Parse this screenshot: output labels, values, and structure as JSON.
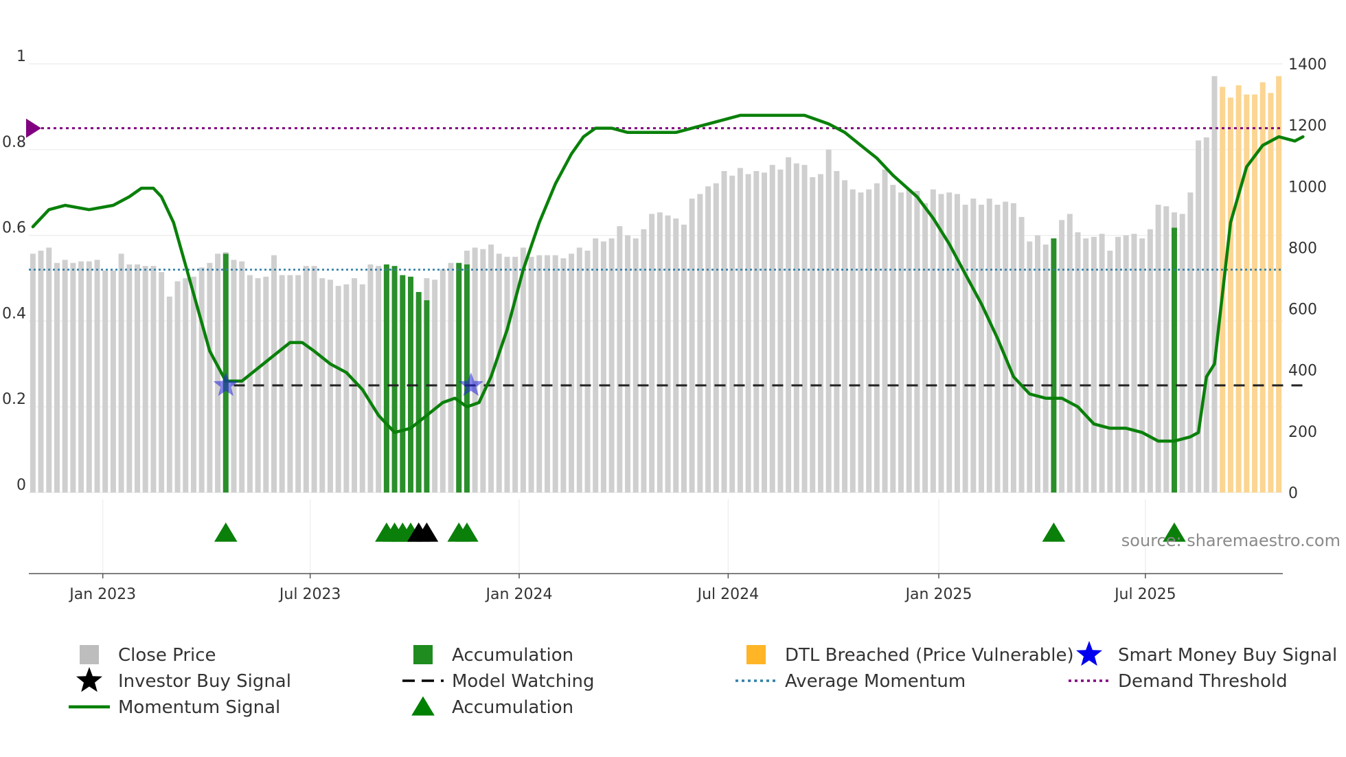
{
  "chart_data": {
    "type": "bar",
    "source_text": "source: sharemaestro.com",
    "x_ticks": [
      "Jan 2023",
      "Jul 2023",
      "Jan 2024",
      "Jul 2024",
      "Jan 2025",
      "Jul 2025"
    ],
    "left_axis": {
      "ticks": [
        "0",
        "0.2",
        "0.4",
        "0.6",
        "0.8",
        "1"
      ],
      "range": [
        0,
        1
      ]
    },
    "right_axis": {
      "ticks": [
        "0",
        "200",
        "400",
        "600",
        "800",
        "1000",
        "1200",
        "1400"
      ],
      "range": [
        0,
        1400
      ]
    },
    "close_price": [
      780,
      790,
      800,
      750,
      760,
      750,
      755,
      755,
      760,
      725,
      725,
      780,
      745,
      745,
      740,
      740,
      720,
      640,
      690,
      700,
      705,
      735,
      750,
      780,
      785,
      760,
      755,
      710,
      700,
      705,
      775,
      710,
      710,
      710,
      740,
      740,
      700,
      695,
      675,
      680,
      700,
      680,
      745,
      740,
      740,
      710,
      700,
      650,
      630,
      700,
      695,
      730,
      750,
      745,
      790,
      800,
      795,
      810,
      780,
      770,
      770,
      800,
      770,
      775,
      775,
      775,
      765,
      780,
      800,
      790,
      830,
      820,
      830,
      870,
      840,
      830,
      860,
      910,
      915,
      905,
      895,
      875,
      960,
      975,
      1000,
      1010,
      1050,
      1035,
      1060,
      1040,
      1050,
      1045,
      1070,
      1055,
      1095,
      1075,
      1070,
      1030,
      1040,
      1120,
      1050,
      1020,
      990,
      980,
      990,
      1010,
      1055,
      1005,
      980,
      990,
      985,
      945,
      990,
      975,
      980,
      975,
      940,
      960,
      940,
      960,
      940,
      950,
      945,
      900,
      820,
      840,
      810,
      830,
      890,
      910,
      850,
      830,
      835,
      845,
      790,
      835,
      840,
      845,
      830,
      860,
      940,
      935,
      915,
      910,
      980,
      1150,
      1160,
      1360,
      1325,
      1290,
      1330,
      1300,
      1300,
      1340,
      1305,
      1360
    ],
    "accumulation_bars": [
      {
        "index": 24,
        "value": 780
      },
      {
        "index": 44,
        "value": 745
      },
      {
        "index": 45,
        "value": 740
      },
      {
        "index": 46,
        "value": 710
      },
      {
        "index": 47,
        "value": 705
      },
      {
        "index": 48,
        "value": 655
      },
      {
        "index": 49,
        "value": 628
      },
      {
        "index": 53,
        "value": 750
      },
      {
        "index": 54,
        "value": 745
      },
      {
        "index": 127,
        "value": 830
      },
      {
        "index": 142,
        "value": 865
      }
    ],
    "dtl_breached_start_index": 148,
    "momentum_signal": [
      {
        "x": 0,
        "y": 0.62
      },
      {
        "x": 2,
        "y": 0.66
      },
      {
        "x": 4,
        "y": 0.67
      },
      {
        "x": 7,
        "y": 0.66
      },
      {
        "x": 10,
        "y": 0.67
      },
      {
        "x": 12,
        "y": 0.69
      },
      {
        "x": 13.5,
        "y": 0.71
      },
      {
        "x": 15,
        "y": 0.71
      },
      {
        "x": 16,
        "y": 0.69
      },
      {
        "x": 17.5,
        "y": 0.63
      },
      {
        "x": 19,
        "y": 0.53
      },
      {
        "x": 20.5,
        "y": 0.43
      },
      {
        "x": 22,
        "y": 0.33
      },
      {
        "x": 24,
        "y": 0.26
      },
      {
        "x": 26,
        "y": 0.26
      },
      {
        "x": 28,
        "y": 0.29
      },
      {
        "x": 30,
        "y": 0.32
      },
      {
        "x": 32,
        "y": 0.35
      },
      {
        "x": 33.5,
        "y": 0.35
      },
      {
        "x": 35,
        "y": 0.33
      },
      {
        "x": 37,
        "y": 0.3
      },
      {
        "x": 39,
        "y": 0.28
      },
      {
        "x": 41,
        "y": 0.24
      },
      {
        "x": 43,
        "y": 0.18
      },
      {
        "x": 45,
        "y": 0.14
      },
      {
        "x": 47,
        "y": 0.15
      },
      {
        "x": 49,
        "y": 0.18
      },
      {
        "x": 51,
        "y": 0.21
      },
      {
        "x": 52.5,
        "y": 0.22
      },
      {
        "x": 54,
        "y": 0.2
      },
      {
        "x": 55.5,
        "y": 0.21
      },
      {
        "x": 57,
        "y": 0.27
      },
      {
        "x": 59,
        "y": 0.38
      },
      {
        "x": 61,
        "y": 0.52
      },
      {
        "x": 63,
        "y": 0.63
      },
      {
        "x": 65,
        "y": 0.72
      },
      {
        "x": 67,
        "y": 0.79
      },
      {
        "x": 68.5,
        "y": 0.83
      },
      {
        "x": 70,
        "y": 0.85
      },
      {
        "x": 72,
        "y": 0.85
      },
      {
        "x": 74,
        "y": 0.84
      },
      {
        "x": 76,
        "y": 0.84
      },
      {
        "x": 80,
        "y": 0.84
      },
      {
        "x": 84,
        "y": 0.86
      },
      {
        "x": 88,
        "y": 0.88
      },
      {
        "x": 92,
        "y": 0.88
      },
      {
        "x": 96,
        "y": 0.88
      },
      {
        "x": 99,
        "y": 0.86
      },
      {
        "x": 101,
        "y": 0.84
      },
      {
        "x": 103,
        "y": 0.81
      },
      {
        "x": 105,
        "y": 0.78
      },
      {
        "x": 107,
        "y": 0.74
      },
      {
        "x": 110,
        "y": 0.69
      },
      {
        "x": 112,
        "y": 0.64
      },
      {
        "x": 114,
        "y": 0.58
      },
      {
        "x": 116,
        "y": 0.51
      },
      {
        "x": 118,
        "y": 0.44
      },
      {
        "x": 120,
        "y": 0.36
      },
      {
        "x": 122,
        "y": 0.27
      },
      {
        "x": 124,
        "y": 0.23
      },
      {
        "x": 126,
        "y": 0.22
      },
      {
        "x": 128,
        "y": 0.22
      },
      {
        "x": 130,
        "y": 0.2
      },
      {
        "x": 132,
        "y": 0.16
      },
      {
        "x": 134,
        "y": 0.15
      },
      {
        "x": 136,
        "y": 0.15
      },
      {
        "x": 138,
        "y": 0.14
      },
      {
        "x": 140,
        "y": 0.12
      },
      {
        "x": 142,
        "y": 0.12
      },
      {
        "x": 144,
        "y": 0.13
      },
      {
        "x": 145,
        "y": 0.14
      },
      {
        "x": 146,
        "y": 0.27
      },
      {
        "x": 147,
        "y": 0.3
      },
      {
        "x": 149,
        "y": 0.63
      },
      {
        "x": 151,
        "y": 0.76
      },
      {
        "x": 153,
        "y": 0.81
      },
      {
        "x": 155,
        "y": 0.83
      },
      {
        "x": 157,
        "y": 0.82
      },
      {
        "x": 158,
        "y": 0.83
      }
    ],
    "average_momentum": 0.52,
    "demand_threshold": 0.85,
    "model_watching_level": 0.25,
    "model_watching_range": [
      25,
      158
    ],
    "smart_money_buy_signals": [
      {
        "x": 24,
        "y": 0.25
      },
      {
        "x": 54.5,
        "y": 0.25
      }
    ],
    "accumulation_triangles": [
      24,
      44,
      45,
      46,
      47,
      53,
      54,
      127,
      142
    ],
    "investor_triangles": [
      48,
      49
    ],
    "legend": [
      {
        "label": "Close Price",
        "swatch": "square",
        "color": "#bdbdbd"
      },
      {
        "label": "Accumulation",
        "swatch": "square",
        "color": "#1e8c1e"
      },
      {
        "label": "DTL Breached (Price Vulnerable)",
        "swatch": "square",
        "color": "#ffb526"
      },
      {
        "label": "Smart Money Buy Signal",
        "swatch": "star",
        "color": "#0000ee"
      },
      {
        "label": "Investor Buy Signal",
        "swatch": "star",
        "color": "#000000"
      },
      {
        "label": "Model Watching",
        "swatch": "dash",
        "color": "#000000"
      },
      {
        "label": "Average Momentum",
        "swatch": "dot",
        "color": "#2e7fa8"
      },
      {
        "label": "Demand Threshold",
        "swatch": "dot",
        "color": "#800080"
      },
      {
        "label": "Momentum Signal",
        "swatch": "line",
        "color": "#008000"
      },
      {
        "label": "Accumulation",
        "swatch": "triangle",
        "color": "#008000"
      }
    ]
  }
}
